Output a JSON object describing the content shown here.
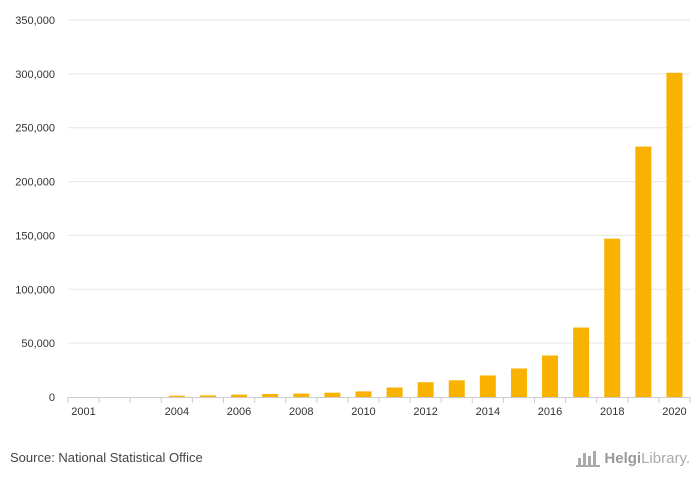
{
  "chart_data": {
    "type": "bar",
    "categories": [
      "2001",
      "2002",
      "2003",
      "2004",
      "2005",
      "2006",
      "2007",
      "2008",
      "2009",
      "2010",
      "2011",
      "2012",
      "2013",
      "2014",
      "2015",
      "2016",
      "2017",
      "2018",
      "2019",
      "2020"
    ],
    "values": [
      0,
      0,
      0,
      1200,
      1500,
      2200,
      2800,
      3200,
      4000,
      5200,
      8800,
      13700,
      15500,
      20000,
      26500,
      38500,
      64500,
      147000,
      232500,
      301000
    ],
    "x_tick_labels": [
      "2001",
      "2004",
      "2006",
      "2008",
      "2010",
      "2012",
      "2014",
      "2016",
      "2018",
      "2020"
    ],
    "y_ticks": [
      0,
      50000,
      100000,
      150000,
      200000,
      250000,
      300000,
      350000
    ],
    "y_tick_labels": [
      "0",
      "50,000",
      "100,000",
      "150,000",
      "200,000",
      "250,000",
      "300,000",
      "350,000"
    ],
    "ylim": [
      0,
      350000
    ],
    "title": "",
    "xlabel": "",
    "ylabel": "",
    "grid": true,
    "legend": "none",
    "bar_color": "#F9B200"
  },
  "footer": {
    "source": "Source: National Statistical Office",
    "brand_bold": "Helgi",
    "brand_light": "Library."
  }
}
